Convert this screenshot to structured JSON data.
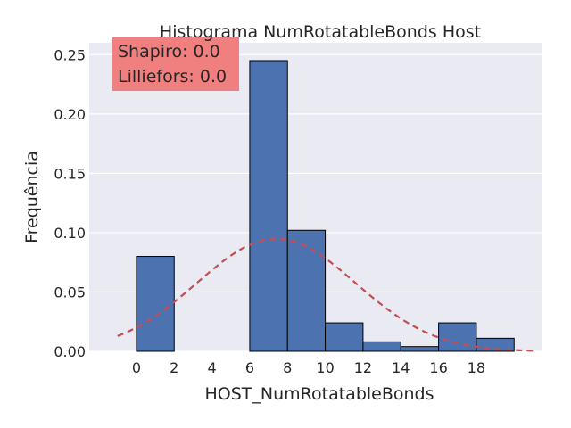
{
  "chart_data": {
    "type": "bar",
    "title": "Histograma NumRotatableBonds Host",
    "xlabel": "HOST_NumRotatableBonds",
    "ylabel": "Frequência",
    "xlim": [
      -2.5,
      21.5
    ],
    "ylim": [
      0,
      0.26
    ],
    "xticks": [
      "0",
      "2",
      "4",
      "6",
      "8",
      "10",
      "12",
      "14",
      "16",
      "18"
    ],
    "yticks": [
      "0.00",
      "0.05",
      "0.10",
      "0.15",
      "0.20",
      "0.25"
    ],
    "grid": true,
    "bins": [
      {
        "start": 0,
        "end": 2,
        "value": 0.08
      },
      {
        "start": 2,
        "end": 4,
        "value": 0.0
      },
      {
        "start": 4,
        "end": 6,
        "value": 0.0
      },
      {
        "start": 6,
        "end": 8,
        "value": 0.245
      },
      {
        "start": 8,
        "end": 10,
        "value": 0.102
      },
      {
        "start": 10,
        "end": 12,
        "value": 0.024
      },
      {
        "start": 12,
        "end": 14,
        "value": 0.008
      },
      {
        "start": 14,
        "end": 16,
        "value": 0.004
      },
      {
        "start": 16,
        "end": 18,
        "value": 0.024
      },
      {
        "start": 18,
        "end": 20,
        "value": 0.011
      }
    ],
    "normal_fit": {
      "mean": 7.4,
      "std": 4.2,
      "x_range": [
        -1.0,
        21.0
      ]
    },
    "annotation": {
      "lines": [
        "Shapiro: 0.0",
        "Lilliefors: 0.0"
      ],
      "position": "top-left"
    },
    "colors": {
      "background": "#eaeaf2",
      "grid": "#ffffff",
      "bar_fill": "#4c72b0",
      "bar_edge": "#000000",
      "curve": "#c44e52",
      "annotation_box": "#f08080"
    }
  }
}
